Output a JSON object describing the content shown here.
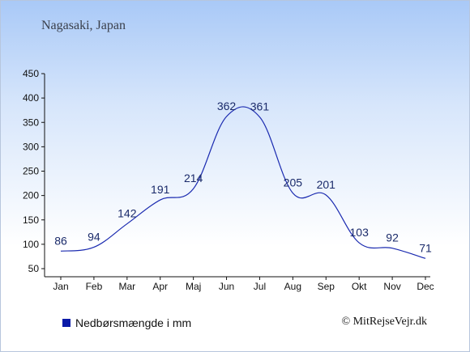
{
  "title": "Nagasaki, Japan",
  "legend": {
    "label": "Nedbørsmængde i mm",
    "color": "#0a1aa8"
  },
  "credit": "© MitRejseVejr.dk",
  "chart_data": {
    "type": "line",
    "categories": [
      "Jan",
      "Feb",
      "Mar",
      "Apr",
      "Maj",
      "Jun",
      "Jul",
      "Aug",
      "Sep",
      "Okt",
      "Nov",
      "Dec"
    ],
    "series": [
      {
        "name": "Nedbørsmængde i mm",
        "values": [
          86,
          94,
          142,
          191,
          214,
          362,
          361,
          205,
          201,
          103,
          92,
          71
        ],
        "color": "#1a2ab0"
      }
    ],
    "ylim": [
      50,
      450
    ],
    "yticks": [
      50,
      100,
      150,
      200,
      250,
      300,
      350,
      400,
      450
    ],
    "xlabel": "",
    "ylabel": "",
    "grid": false,
    "legend_position": "bottom-left"
  }
}
